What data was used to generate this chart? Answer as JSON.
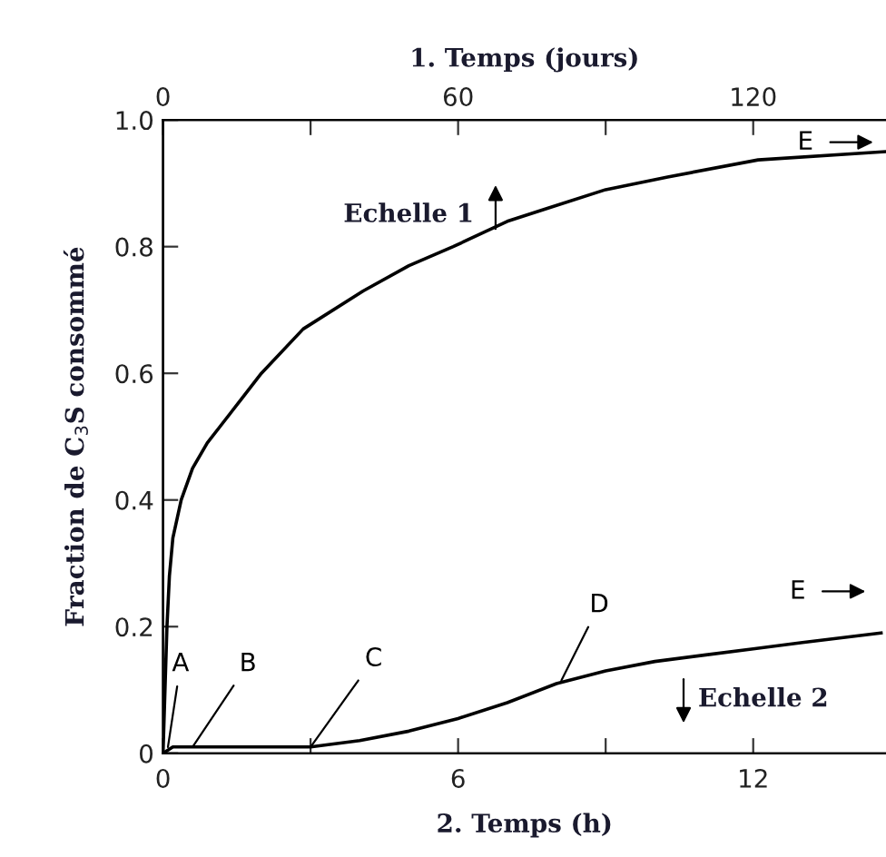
{
  "chart_data": {
    "type": "line",
    "xlabel": "2. Temps (h)",
    "x2label": "1. Temps (jours)",
    "ylabel": "Fraction de C$_{3}$S consommé",
    "series": [
      {
        "color": "#000000",
        "axis": "x2",
        "x": [
          0,
          0.4,
          0.8,
          1.3,
          2,
          3.7,
          6,
          9,
          12,
          16,
          20,
          28.5,
          40.7,
          50,
          59,
          70,
          78,
          90,
          102.6,
          121,
          147
        ],
        "values": [
          0,
          0.1,
          0.2,
          0.28,
          0.34,
          0.4,
          0.45,
          0.49,
          0.52,
          0.56,
          0.6,
          0.67,
          0.73,
          0.77,
          0.8,
          0.84,
          0.86,
          0.89,
          0.91,
          0.937,
          0.95
        ]
      },
      {
        "color": "#000000",
        "x": [
          0,
          0.2,
          1,
          3,
          4,
          5,
          6,
          7,
          8,
          9,
          10,
          11,
          12,
          13,
          14.6
        ],
        "values": [
          0,
          0.01,
          0.01,
          0.01,
          0.02,
          0.035,
          0.055,
          0.08,
          0.11,
          0.13,
          0.145,
          0.155,
          0.165,
          0.175,
          0.19
        ]
      }
    ],
    "xlim": [
      0,
      14.7
    ],
    "xticks": [
      0,
      {
        "value": 3,
        "label": null
      },
      6,
      {
        "value": 9,
        "label": null
      },
      12
    ],
    "x2lim": [
      0,
      147
    ],
    "x2ticks": [
      0,
      {
        "value": 30,
        "label": null
      },
      60,
      {
        "value": 90,
        "label": null
      },
      120
    ],
    "ylim": [
      0,
      1
    ],
    "yticks": [
      0,
      0.2,
      0.4,
      0.6,
      0.8,
      {
        "value": 1,
        "label": "1.0"
      }
    ],
    "grid": false,
    "legend": false,
    "marker": "none",
    "line_style": "solid",
    "annotations": [
      "Echelle 1",
      {
        "text": "E",
        "x": 12.9,
        "y": 0.945
      },
      {
        "text": "A",
        "x": 0.1,
        "y": 0.01
      },
      {
        "text": "B",
        "x": 0.6,
        "y": 0.01
      },
      {
        "text": "C",
        "x": 3.0,
        "y": 0.01
      },
      {
        "text": "D",
        "x": 8.1,
        "y": 0.115
      },
      {
        "text": "E",
        "x": 13.0,
        "y": 0.18
      },
      "Echelle 2"
    ]
  }
}
